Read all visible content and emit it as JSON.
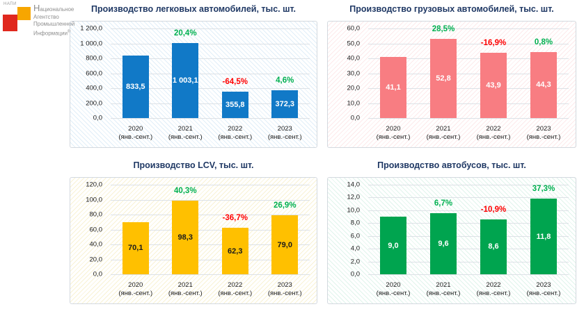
{
  "page": {
    "background": "#FFFFFF"
  },
  "logo": {
    "mini_label": "НАПИ",
    "lines": [
      "Национальное",
      "Агентство",
      "Промышленной",
      "Информации"
    ],
    "registered_mark": "®",
    "orange_color": "#F7A600",
    "red_color": "#E0281E",
    "text_color": "#8E8E8E"
  },
  "style": {
    "title_color": "#1F3864",
    "pct_positive_color": "#00B050",
    "pct_negative_color": "#FF0000",
    "gridline_color": "#DCE1E6",
    "panel_border_color": "#D3D9DF",
    "axis_text_color": "#1A1A1A"
  },
  "chart_data": [
    {
      "type": "bar",
      "title": "Производство легковых автомобилей, тыс. шт.",
      "categories": [
        "2020\n(янв.-сент.)",
        "2021\n(янв.-сент.)",
        "2022\n(янв.-сент.)",
        "2023\n(янв.-сент.)"
      ],
      "values": [
        833.5,
        1003.1,
        355.8,
        372.3
      ],
      "value_labels": [
        "833,5",
        "1 003,1",
        "355,8",
        "372,3"
      ],
      "pct_change_labels": [
        null,
        "20,4%",
        "-64,5%",
        "4,6%"
      ],
      "ylim": [
        0,
        1200
      ],
      "ytick_labels_top_to_bottom": [
        "1 200,0",
        "1 000,0",
        "800,0",
        "600,0",
        "400,0",
        "200,0",
        "0,0"
      ],
      "grid": true,
      "legend": "none",
      "bar_color": "#1179C7",
      "value_label_color": "#FFFFFF",
      "hatch_angle": "45deg",
      "hatch_color": "rgba(17,121,199,0.13)"
    },
    {
      "type": "bar",
      "title": "Производство грузовых автомобилей, тыс. шт.",
      "categories": [
        "2020\n(янв.-сент.)",
        "2021\n(янв.-сент.)",
        "2022\n(янв.-сент.)",
        "2023\n(янв.-сент.)"
      ],
      "values": [
        41.1,
        52.8,
        43.9,
        44.3
      ],
      "value_labels": [
        "41,1",
        "52,8",
        "43,9",
        "44,3"
      ],
      "pct_change_labels": [
        null,
        "28,5%",
        "-16,9%",
        "0,8%"
      ],
      "ylim": [
        0,
        60
      ],
      "ytick_labels_top_to_bottom": [
        "60,0",
        "50,0",
        "40,0",
        "30,0",
        "20,0",
        "10,0",
        "0,0"
      ],
      "grid": true,
      "legend": "none",
      "bar_color": "#F87D82",
      "value_label_color": "#FFFFFF",
      "hatch_angle": "135deg",
      "hatch_color": "rgba(244,120,126,0.16)"
    },
    {
      "type": "bar",
      "title": "Производство LCV, тыс. шт.",
      "categories": [
        "2020\n(янв.-сент.)",
        "2021\n(янв.-сент.)",
        "2022\n(янв.-сент.)",
        "2023\n(янв.-сент.)"
      ],
      "values": [
        70.1,
        98.3,
        62.3,
        79.0
      ],
      "value_labels": [
        "70,1",
        "98,3",
        "62,3",
        "79,0"
      ],
      "pct_change_labels": [
        null,
        "40,3%",
        "-36,7%",
        "26,9%"
      ],
      "ylim": [
        0,
        120
      ],
      "ytick_labels_top_to_bottom": [
        "120,0",
        "100,0",
        "80,0",
        "60,0",
        "40,0",
        "20,0",
        "0,0"
      ],
      "grid": true,
      "legend": "none",
      "bar_color": "#FFC000",
      "value_label_color": "#1A1A1A",
      "hatch_angle": "135deg",
      "hatch_color": "rgba(226,196,60,0.22)"
    },
    {
      "type": "bar",
      "title": "Производство автобусов, тыс. шт.",
      "categories": [
        "2020\n(янв.-сент.)",
        "2021\n(янв.-сент.)",
        "2022\n(янв.-сент.)",
        "2023\n(янв.-сент.)"
      ],
      "values": [
        9.0,
        9.6,
        8.6,
        11.8
      ],
      "value_labels": [
        "9,0",
        "9,6",
        "8,6",
        "11,8"
      ],
      "pct_change_labels": [
        null,
        "6,7%",
        "-10,9%",
        "37,3%"
      ],
      "ylim": [
        0,
        14
      ],
      "ytick_labels_top_to_bottom": [
        "14,0",
        "12,0",
        "10,0",
        "8,0",
        "6,0",
        "4,0",
        "2,0",
        "0,0"
      ],
      "grid": true,
      "legend": "none",
      "bar_color": "#00A44F",
      "value_label_color": "#FFFFFF",
      "hatch_angle": "45deg",
      "hatch_color": "rgba(0,164,95,0.12)"
    }
  ]
}
